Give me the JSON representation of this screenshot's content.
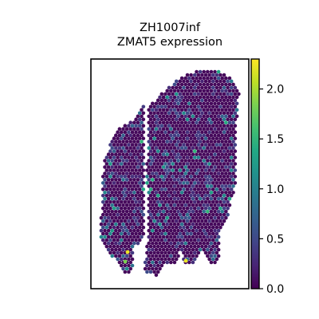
{
  "chart_data": {
    "type": "scatter",
    "subtype": "spatial-expression-spots",
    "title_line1": "ZH1007inf",
    "title_line2": "ZMAT5 expression",
    "xlabel": "",
    "ylabel": "",
    "axes_ticks": false,
    "grid": false,
    "colormap": "viridis",
    "colorbar": {
      "position": "right",
      "range": [
        0.0,
        2.3
      ],
      "ticks": [
        0.0,
        0.5,
        1.0,
        1.5,
        2.0
      ],
      "tick_labels": [
        "0.0",
        "0.5",
        "1.0",
        "1.5",
        "2.0"
      ]
    },
    "expression_summary": {
      "min": 0.0,
      "max": 2.3,
      "background_level": 0.05,
      "typical_expressed_level": 0.8
    },
    "colors": {
      "low": "#440154",
      "mid": "#21918c",
      "high": "#fde725",
      "frame": "#000000"
    }
  }
}
